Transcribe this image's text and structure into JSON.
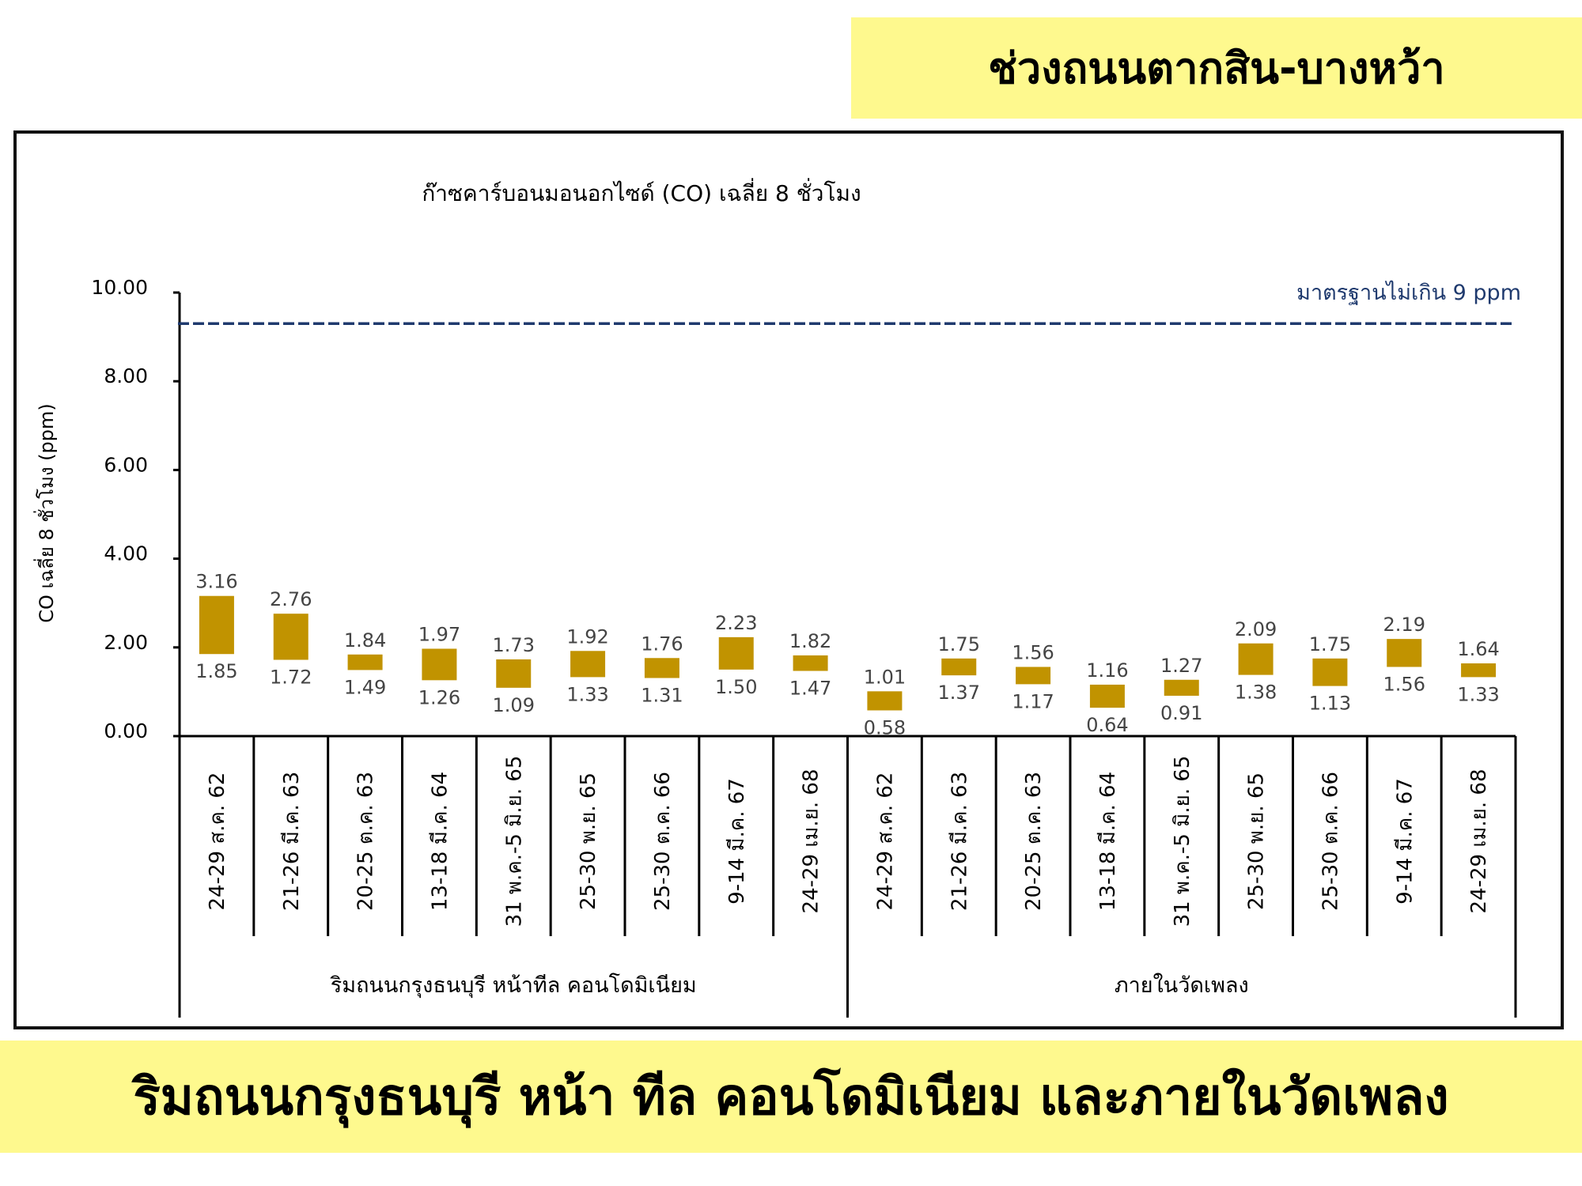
{
  "header": {
    "title": "ช่วงถนนตากสิน-บางหว้า"
  },
  "footer": {
    "caption": "ริมถนนกรุงธนบุรี หน้า ทีล คอนโดมิเนียม และภายในวัดเพลง"
  },
  "colors": {
    "bar": "#c19300",
    "standard_line": "#1f3a6e",
    "banner": "#fef98e"
  },
  "chart_data": {
    "type": "bar",
    "subtype": "floating-range",
    "title": "ก๊าซคาร์บอนมอนอกไซด์ (CO) เฉลี่ย 8 ชั่วโมง",
    "ylabel": "CO เฉลี่ย 8 ชั่วโมง (ppm)",
    "ylim": [
      0,
      10
    ],
    "yticks": [
      "0.00",
      "2.00",
      "4.00",
      "6.00",
      "8.00",
      "10.00"
    ],
    "standard": {
      "value": 9.3,
      "label": "มาตรฐานไม่เกิน 9 ppm"
    },
    "groups": [
      {
        "name": "ริมถนนกรุงธนบุรี หน้าทีล คอนโดมิเนียม",
        "categories": [
          "24-29 ส.ค. 62",
          "21-26 มี.ค. 63",
          "20-25 ต.ค. 63",
          "13-18 มี.ค. 64",
          "31 พ.ค.-5 มิ.ย. 65",
          "25-30 พ.ย. 65",
          "25-30 ต.ค. 66",
          "9-14 มี.ค. 67",
          "24-29 เม.ย. 68"
        ],
        "max": [
          "3.16",
          "2.76",
          "1.84",
          "1.97",
          "1.73",
          "1.92",
          "1.76",
          "2.23",
          "1.82"
        ],
        "min": [
          "1.85",
          "1.72",
          "1.49",
          "1.26",
          "1.09",
          "1.33",
          "1.31",
          "1.50",
          "1.47"
        ]
      },
      {
        "name": "ภายในวัดเพลง",
        "categories": [
          "24-29 ส.ค. 62",
          "21-26 มี.ค. 63",
          "20-25 ต.ค. 63",
          "13-18 มี.ค. 64",
          "31 พ.ค.-5 มิ.ย. 65",
          "25-30 พ.ย. 65",
          "25-30 ต.ค. 66",
          "9-14 มี.ค. 67",
          "24-29 เม.ย. 68"
        ],
        "max": [
          "1.01",
          "1.75",
          "1.56",
          "1.16",
          "1.27",
          "2.09",
          "1.75",
          "2.19",
          "1.64"
        ],
        "min": [
          "0.58",
          "1.37",
          "1.17",
          "0.64",
          "0.91",
          "1.38",
          "1.13",
          "1.56",
          "1.33"
        ]
      }
    ]
  }
}
